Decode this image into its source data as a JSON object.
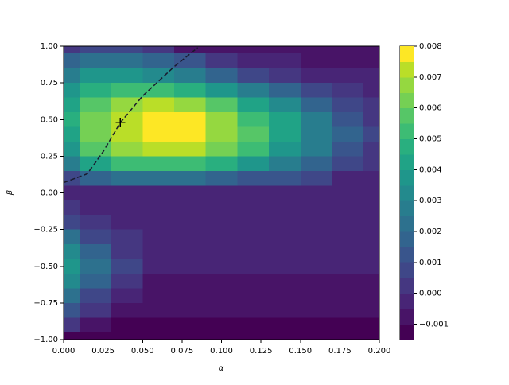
{
  "chart_data": {
    "type": "contour",
    "xlabel": "α",
    "ylabel": "β",
    "x": [
      0,
      0.02,
      0.04,
      0.06,
      0.08,
      0.1,
      0.12,
      0.14,
      0.16,
      0.18,
      0.2
    ],
    "y": [
      1.0,
      0.9,
      0.8,
      0.7,
      0.6,
      0.5,
      0.4,
      0.3,
      0.2,
      0.1,
      0.0,
      -0.1,
      -0.2,
      -0.3,
      -0.4,
      -0.5,
      -0.6,
      -0.7,
      -0.8,
      -0.9,
      -1.0
    ],
    "z": [
      [
        0.0003,
        0.0008,
        0.0008,
        0.0004,
        -0.0006,
        -0.0009,
        -0.0009,
        -0.0009,
        -0.0009,
        -0.0009,
        -0.0009
      ],
      [
        0.0015,
        0.002,
        0.002,
        0.0018,
        0.001,
        0.0002,
        -0.0003,
        -0.0005,
        -0.0006,
        -0.0006,
        -0.0006
      ],
      [
        0.0025,
        0.0035,
        0.0037,
        0.0033,
        0.0025,
        0.0016,
        0.0008,
        0.0002,
        -0.0003,
        -0.0004,
        -0.0004
      ],
      [
        0.0035,
        0.0048,
        0.0053,
        0.0052,
        0.0045,
        0.0035,
        0.0025,
        0.0015,
        0.0007,
        0.0001,
        -0.0003
      ],
      [
        0.0042,
        0.0058,
        0.0067,
        0.007,
        0.0066,
        0.0055,
        0.0042,
        0.003,
        0.0018,
        0.0008,
        0.0
      ],
      [
        0.0045,
        0.0063,
        0.0074,
        0.0078,
        0.0076,
        0.0066,
        0.0053,
        0.004,
        0.0027,
        0.0014,
        0.0003
      ],
      [
        0.0043,
        0.0062,
        0.0074,
        0.008,
        0.0078,
        0.0068,
        0.0055,
        0.0042,
        0.0029,
        0.0016,
        0.0006
      ],
      [
        0.0036,
        0.0055,
        0.0067,
        0.0072,
        0.007,
        0.0062,
        0.005,
        0.0038,
        0.0026,
        0.0014,
        0.0004
      ],
      [
        0.0025,
        0.004,
        0.005,
        0.0054,
        0.0052,
        0.0046,
        0.0038,
        0.0028,
        0.0018,
        0.0008,
        0.0001
      ],
      [
        0.0008,
        0.0015,
        0.002,
        0.0022,
        0.0021,
        0.0018,
        0.0014,
        0.001,
        0.0005,
        -0.0002,
        -0.0003
      ],
      [
        -0.0002,
        -0.0002,
        -0.0002,
        -0.0002,
        -0.0002,
        -0.0002,
        -0.0002,
        -0.0002,
        -0.0002,
        -0.0002,
        -0.0002
      ],
      [
        0.0002,
        -0.0003,
        -0.0003,
        -0.0003,
        -0.0003,
        -0.0003,
        -0.0003,
        -0.0003,
        -0.0003,
        -0.0003,
        -0.0003
      ],
      [
        0.0008,
        0.0001,
        -0.0003,
        -0.0003,
        -0.0003,
        -0.0003,
        -0.0003,
        -0.0003,
        -0.0003,
        -0.0003,
        -0.0003
      ],
      [
        0.002,
        0.0008,
        0.0,
        -0.0003,
        -0.0003,
        -0.0003,
        -0.0003,
        -0.0003,
        -0.0003,
        -0.0003,
        -0.0003
      ],
      [
        0.0032,
        0.0016,
        0.0003,
        -0.0003,
        -0.0003,
        -0.0003,
        -0.0003,
        -0.0003,
        -0.0003,
        -0.0003,
        -0.0003
      ],
      [
        0.0038,
        0.002,
        0.0005,
        -0.0003,
        -0.0003,
        -0.0003,
        -0.0003,
        -0.0003,
        -0.0003,
        -0.0003,
        -0.0003
      ],
      [
        0.0034,
        0.0017,
        0.0002,
        -0.0006,
        -0.0007,
        -0.0007,
        -0.0007,
        -0.0007,
        -0.0007,
        -0.0007,
        -0.0007
      ],
      [
        0.0024,
        0.0008,
        -0.0004,
        -0.0007,
        -0.0008,
        -0.0008,
        -0.0008,
        -0.0008,
        -0.0008,
        -0.0008,
        -0.0008
      ],
      [
        0.0012,
        0.0,
        -0.0007,
        -0.0008,
        -0.0008,
        -0.0008,
        -0.0008,
        -0.0008,
        -0.0008,
        -0.0008,
        -0.0008
      ],
      [
        0.0,
        -0.001,
        -0.0011,
        -0.0012,
        -0.0012,
        -0.0012,
        -0.0012,
        -0.0012,
        -0.0012,
        -0.0012,
        -0.0012
      ],
      [
        -0.0012,
        -0.0013,
        -0.0013,
        -0.0013,
        -0.0013,
        -0.0013,
        -0.0013,
        -0.0013,
        -0.0013,
        -0.0013,
        -0.0013
      ]
    ],
    "levels": [
      -0.0015,
      -0.001,
      -0.0005,
      0.0,
      0.0005,
      0.001,
      0.0015,
      0.002,
      0.0025,
      0.003,
      0.0035,
      0.004,
      0.0045,
      0.005,
      0.0055,
      0.006,
      0.0065,
      0.007,
      0.0075,
      0.008
    ],
    "colors": [
      "#440154",
      "#481467",
      "#482576",
      "#453781",
      "#3f4788",
      "#39558c",
      "#32648e",
      "#2d718e",
      "#287d8e",
      "#238a8d",
      "#1f968b",
      "#20a386",
      "#29af7f",
      "#3dbc74",
      "#56c667",
      "#75d054",
      "#95d840",
      "#bade28",
      "#fde725"
    ],
    "xlim": [
      0,
      0.2
    ],
    "ylim": [
      -1,
      1
    ],
    "clim": [
      -0.0015,
      0.008
    ],
    "xticks": [
      {
        "value": 0,
        "label": "0.000"
      },
      {
        "value": 0.025,
        "label": "0.025"
      },
      {
        "value": 0.05,
        "label": "0.050"
      },
      {
        "value": 0.075,
        "label": "0.075"
      },
      {
        "value": 0.1,
        "label": "0.100"
      },
      {
        "value": 0.125,
        "label": "0.125"
      },
      {
        "value": 0.15,
        "label": "0.150"
      },
      {
        "value": 0.175,
        "label": "0.175"
      },
      {
        "value": 0.2,
        "label": "0.200"
      }
    ],
    "yticks": [
      {
        "value": -1,
        "label": "−1.00"
      },
      {
        "value": -0.75,
        "label": "−0.75"
      },
      {
        "value": -0.5,
        "label": "−0.50"
      },
      {
        "value": -0.25,
        "label": "−0.25"
      },
      {
        "value": 0,
        "label": "0.00"
      },
      {
        "value": 0.25,
        "label": "0.25"
      },
      {
        "value": 0.5,
        "label": "0.50"
      },
      {
        "value": 0.75,
        "label": "0.75"
      },
      {
        "value": 1,
        "label": "1.00"
      }
    ],
    "cticks": [
      {
        "value": -0.001,
        "label": "−0.001"
      },
      {
        "value": 0,
        "label": "0.000"
      },
      {
        "value": 0.001,
        "label": "0.001"
      },
      {
        "value": 0.002,
        "label": "0.002"
      },
      {
        "value": 0.003,
        "label": "0.003"
      },
      {
        "value": 0.004,
        "label": "0.004"
      },
      {
        "value": 0.005,
        "label": "0.005"
      },
      {
        "value": 0.006,
        "label": "0.006"
      },
      {
        "value": 0.007,
        "label": "0.007"
      },
      {
        "value": 0.008,
        "label": "0.008"
      }
    ],
    "curve": {
      "x": [
        0.0,
        0.005,
        0.015,
        0.025,
        0.036,
        0.05,
        0.07,
        0.085
      ],
      "y": [
        0.07,
        0.09,
        0.13,
        0.28,
        0.48,
        0.66,
        0.86,
        0.99
      ],
      "color": "#1a1a2e"
    },
    "marker": {
      "x": 0.036,
      "y": 0.48,
      "color": "#000000"
    }
  }
}
